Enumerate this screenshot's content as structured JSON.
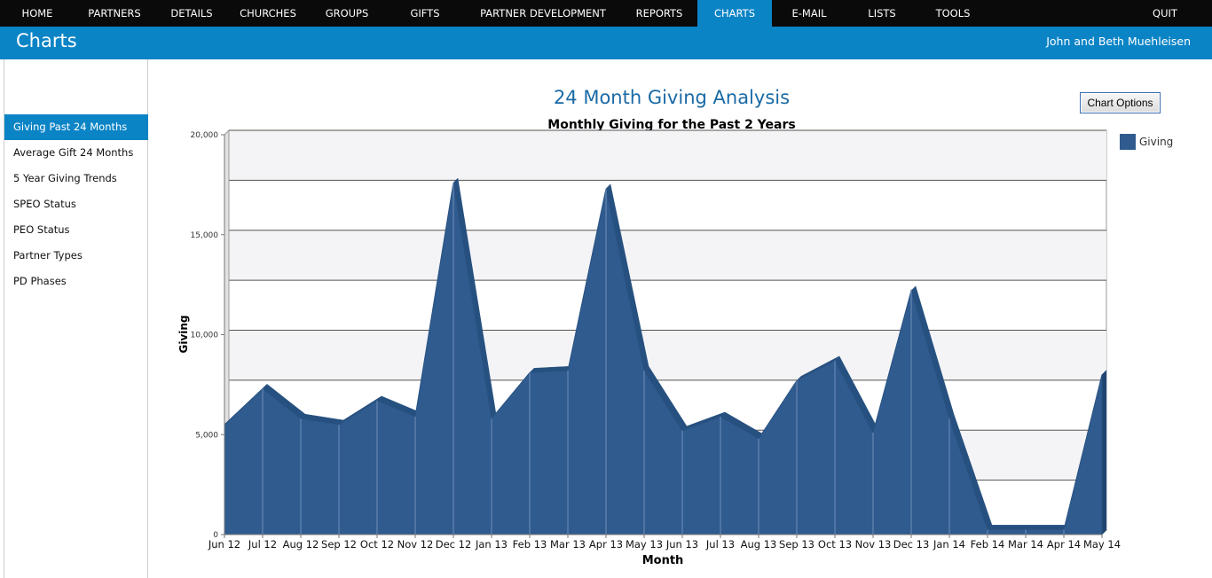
{
  "nav": {
    "items": [
      {
        "label": "HOME"
      },
      {
        "label": "PARTNERS"
      },
      {
        "label": "DETAILS"
      },
      {
        "label": "CHURCHES"
      },
      {
        "label": "GROUPS"
      },
      {
        "label": "GIFTS"
      },
      {
        "label": "PARTNER DEVELOPMENT"
      },
      {
        "label": "REPORTS"
      },
      {
        "label": "CHARTS"
      },
      {
        "label": "E-MAIL"
      },
      {
        "label": "LISTS"
      },
      {
        "label": "TOOLS"
      },
      {
        "label": "QUIT"
      }
    ],
    "active": "CHARTS"
  },
  "header": {
    "title": "Charts",
    "user": "John and Beth Muehleisen"
  },
  "sidebar": {
    "items": [
      {
        "label": "Giving Past 24 Months"
      },
      {
        "label": "Average Gift 24 Months"
      },
      {
        "label": "5 Year Giving Trends"
      },
      {
        "label": "SPEO Status"
      },
      {
        "label": "PEO Status"
      },
      {
        "label": "Partner Types"
      },
      {
        "label": "PD Phases"
      }
    ],
    "active_index": 0
  },
  "main": {
    "title": "24 Month Giving Analysis",
    "chart_options_label": "Chart Options"
  },
  "colors": {
    "accent": "#0b84c6",
    "series": "#2f5b8f",
    "title": "#1a6aa6"
  },
  "chart_data": {
    "type": "area",
    "title": "Monthly Giving for the Past 2 Years",
    "xlabel": "Month",
    "ylabel": "Giving",
    "ylim": [
      0,
      20000
    ],
    "yticks": [
      "0",
      "5,000",
      "10,000",
      "15,000",
      "20,000"
    ],
    "categories": [
      "Jun 12",
      "Jul 12",
      "Aug 12",
      "Sep 12",
      "Oct 12",
      "Nov 12",
      "Dec 12",
      "Jan 13",
      "Feb 13",
      "Mar 13",
      "Apr 13",
      "May 13",
      "Jun 13",
      "Jul 13",
      "Aug 13",
      "Sep 13",
      "Oct 13",
      "Nov 13",
      "Dec 13",
      "Jan 14",
      "Feb 14",
      "Mar 14",
      "Apr 14",
      "May 14"
    ],
    "series": [
      {
        "name": "Giving",
        "values": [
          5500,
          7300,
          5800,
          5500,
          6700,
          5900,
          17600,
          5800,
          8100,
          8200,
          17300,
          8200,
          5200,
          5900,
          4800,
          7700,
          8700,
          5100,
          12200,
          5800,
          250,
          250,
          250,
          8000
        ]
      }
    ],
    "legend": "top-right",
    "grid": true
  }
}
